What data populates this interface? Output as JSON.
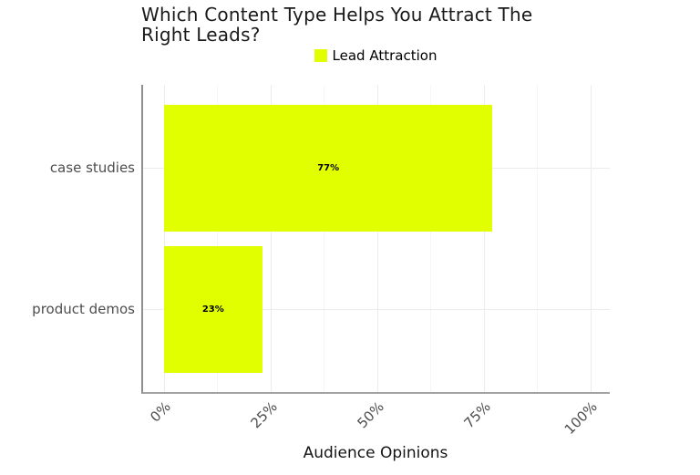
{
  "title": {
    "text": "Which Content Type Helps You Attract The Right Leads?",
    "lines": [
      "Which Content Type Helps You Attract The",
      "Right Leads?"
    ]
  },
  "legend": {
    "label": "Lead Attraction",
    "swatch_color": "#e2ff00",
    "position": "top-center"
  },
  "chart_data": {
    "type": "bar",
    "orientation": "horizontal",
    "title": "Which Content Type Helps You Attract The Right Leads?",
    "categories": [
      "case studies",
      "product demos"
    ],
    "values": [
      77,
      23
    ],
    "value_labels": [
      "77%",
      "23%"
    ],
    "series": [
      {
        "name": "Lead Attraction",
        "values": [
          77,
          23
        ]
      }
    ],
    "xlabel": "Audience Opinions",
    "ylabel": "",
    "xlim": [
      0,
      100
    ],
    "x_ticks": [
      "0%",
      "25%",
      "50%",
      "75%",
      "100%"
    ],
    "x_tick_values": [
      0,
      25,
      50,
      75,
      100
    ],
    "bar_color": "#e2ff00",
    "grid": "major-and-minor, light gray on white",
    "legend_position": "top-center"
  }
}
